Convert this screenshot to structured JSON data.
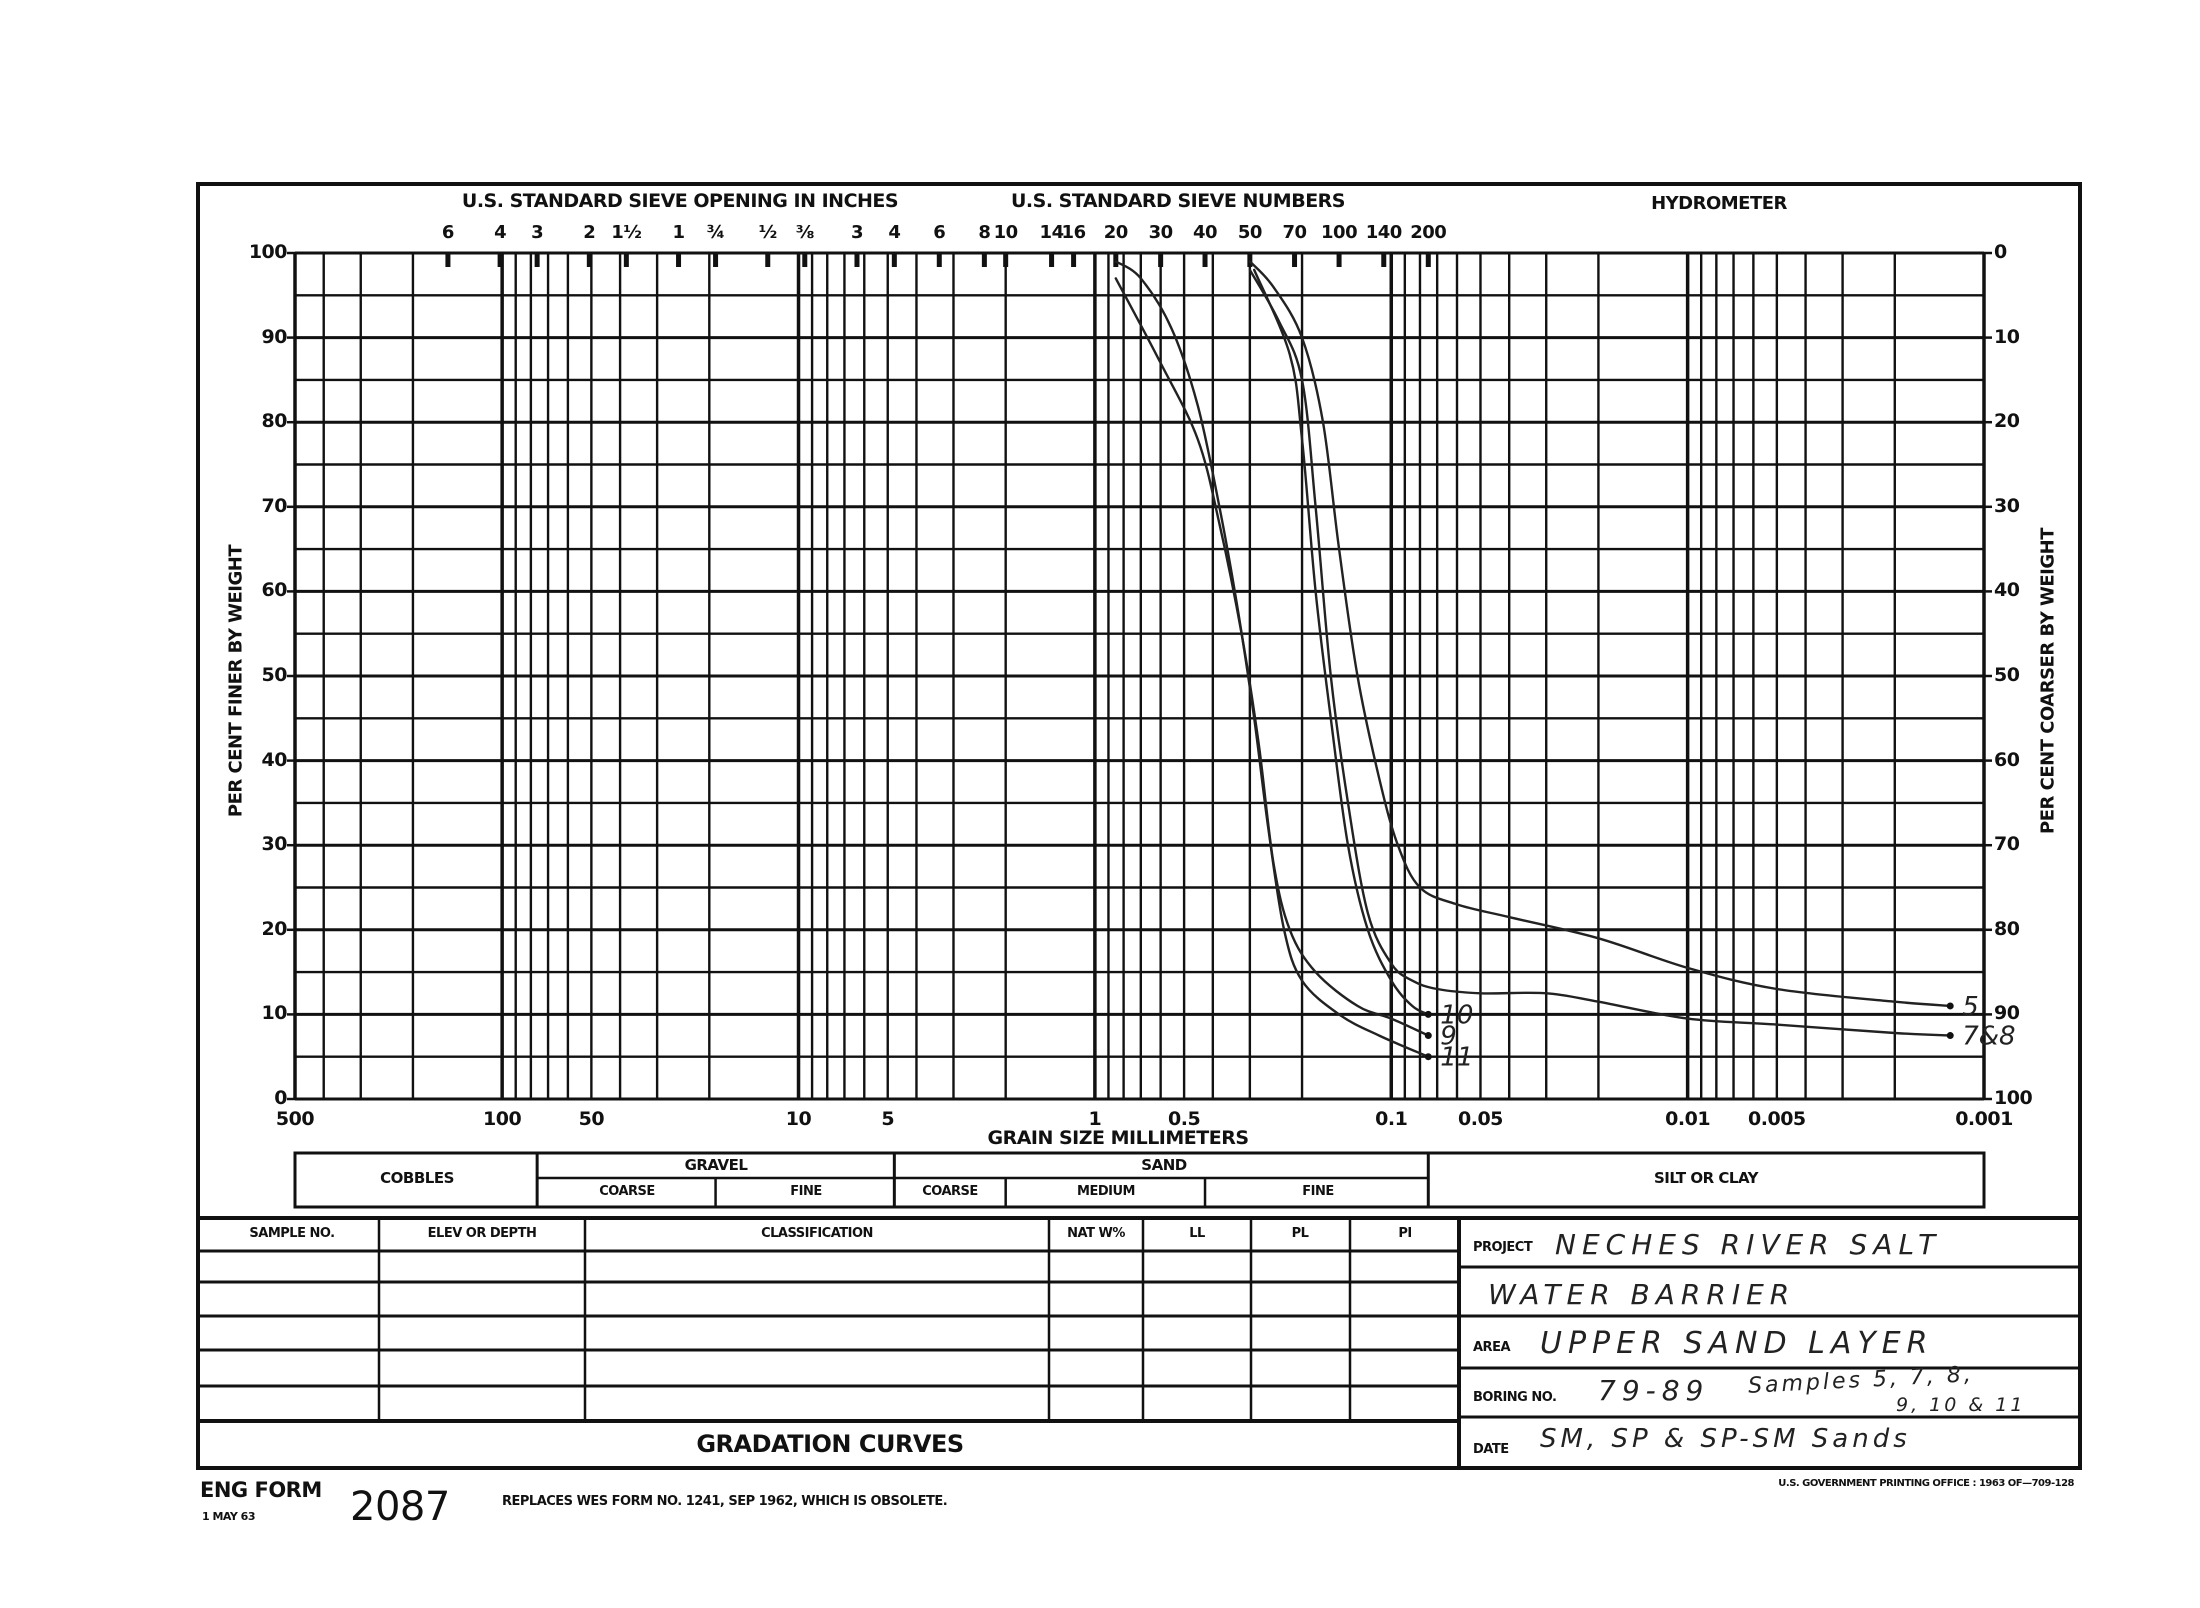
{
  "header": {
    "sieve_inches_title": "U.S. STANDARD SIEVE OPENING IN INCHES",
    "sieve_numbers_title": "U.S. STANDARD SIEVE NUMBERS",
    "hydrometer_title": "HYDROMETER",
    "sieve_inch_labels": [
      "6",
      "4",
      "3",
      "2",
      "1½",
      "1",
      "¾",
      "½",
      "⅜"
    ],
    "sieve_number_labels": [
      "3",
      "4",
      "6",
      "8",
      "10",
      "14",
      "16",
      "20",
      "30",
      "40",
      "50",
      "70",
      "100",
      "140",
      "200"
    ]
  },
  "chart_data": {
    "type": "line",
    "title": "GRADATION CURVES",
    "xlabel": "GRAIN SIZE MILLIMETERS",
    "ylabel": "PER CENT FINER BY WEIGHT",
    "y2label": "PER CENT COARSER BY WEIGHT",
    "x_scale": "log",
    "x_direction": "reversed",
    "xlim": [
      500,
      0.001
    ],
    "ylim": [
      0,
      100
    ],
    "grid": true,
    "x_ticks": [
      "500",
      "100",
      "50",
      "10",
      "5",
      "1",
      "0.5",
      "0.1",
      "0.05",
      "0.01",
      "0.005",
      "0.001"
    ],
    "y_ticks": [
      "100",
      "90",
      "80",
      "70",
      "60",
      "50",
      "40",
      "30",
      "20",
      "10",
      "0"
    ],
    "y2_ticks": [
      "0",
      "10",
      "20",
      "30",
      "40",
      "50",
      "60",
      "70",
      "80",
      "90",
      "100"
    ],
    "series": [
      {
        "name": "5",
        "points": [
          [
            0.3,
            99
          ],
          [
            0.25,
            96
          ],
          [
            0.2,
            90
          ],
          [
            0.17,
            80
          ],
          [
            0.15,
            65
          ],
          [
            0.13,
            50
          ],
          [
            0.11,
            38
          ],
          [
            0.095,
            30
          ],
          [
            0.08,
            25
          ],
          [
            0.06,
            23
          ],
          [
            0.04,
            21.5
          ],
          [
            0.02,
            19
          ],
          [
            0.01,
            15.5
          ],
          [
            0.005,
            13
          ],
          [
            0.002,
            11.5
          ],
          [
            0.0013,
            11
          ]
        ]
      },
      {
        "name": "7&8",
        "points": [
          [
            0.3,
            98
          ],
          [
            0.24,
            92
          ],
          [
            0.2,
            85
          ],
          [
            0.18,
            70
          ],
          [
            0.16,
            50
          ],
          [
            0.14,
            35
          ],
          [
            0.12,
            22
          ],
          [
            0.1,
            16
          ],
          [
            0.085,
            14
          ],
          [
            0.07,
            13
          ],
          [
            0.05,
            12.5
          ],
          [
            0.03,
            12.5
          ],
          [
            0.02,
            11.5
          ],
          [
            0.01,
            9.5
          ],
          [
            0.005,
            8.8
          ],
          [
            0.002,
            7.8
          ],
          [
            0.0013,
            7.5
          ]
        ]
      },
      {
        "name": "10",
        "points": [
          [
            0.29,
            98
          ],
          [
            0.22,
            88
          ],
          [
            0.2,
            78
          ],
          [
            0.18,
            60
          ],
          [
            0.16,
            45
          ],
          [
            0.14,
            30
          ],
          [
            0.12,
            20
          ],
          [
            0.1,
            14
          ],
          [
            0.085,
            11
          ],
          [
            0.075,
            10
          ]
        ]
      },
      {
        "name": "9",
        "points": [
          [
            0.85,
            97
          ],
          [
            0.6,
            87
          ],
          [
            0.45,
            78
          ],
          [
            0.38,
            68
          ],
          [
            0.32,
            55
          ],
          [
            0.28,
            42
          ],
          [
            0.25,
            28
          ],
          [
            0.22,
            20
          ],
          [
            0.18,
            15
          ],
          [
            0.13,
            11
          ],
          [
            0.1,
            9.5
          ],
          [
            0.075,
            7.5
          ]
        ]
      },
      {
        "name": "11",
        "points": [
          [
            0.85,
            99
          ],
          [
            0.7,
            97
          ],
          [
            0.55,
            91
          ],
          [
            0.45,
            82
          ],
          [
            0.38,
            70
          ],
          [
            0.33,
            58
          ],
          [
            0.29,
            45
          ],
          [
            0.26,
            32
          ],
          [
            0.23,
            20
          ],
          [
            0.2,
            14
          ],
          [
            0.15,
            10
          ],
          [
            0.11,
            7.5
          ],
          [
            0.075,
            5
          ]
        ]
      }
    ]
  },
  "classification_band": {
    "cobbles": "COBBLES",
    "gravel": "GRAVEL",
    "gravel_coarse": "COARSE",
    "gravel_fine": "FINE",
    "sand": "SAND",
    "sand_coarse": "COARSE",
    "sand_medium": "MEDIUM",
    "sand_fine": "FINE",
    "silt_clay": "SILT OR CLAY"
  },
  "table": {
    "headers": [
      "SAMPLE NO.",
      "ELEV OR DEPTH",
      "CLASSIFICATION",
      "NAT W%",
      "LL",
      "PL",
      "PI"
    ],
    "title": "GRADATION CURVES"
  },
  "info": {
    "project_label": "PROJECT",
    "project_line1": "NECHES RIVER SALT",
    "project_line2": "WATER BARRIER",
    "area_label": "AREA",
    "area_value": "UPPER SAND LAYER",
    "boring_label": "BORING NO.",
    "boring_value": "79-89",
    "boring_note_1": "Samples 5, 7, 8,",
    "boring_note_2": "9, 10 & 11",
    "date_label": "DATE",
    "date_value": "SM, SP & SP-SM Sands"
  },
  "footer": {
    "form_name": "ENG FORM",
    "form_date": "1 MAY 63",
    "form_number": "2087",
    "replaces": "REPLACES WES FORM NO. 1241, SEP 1962, WHICH IS OBSOLETE.",
    "printing_office": "U.S. GOVERNMENT PRINTING OFFICE : 1963 OF—709-128"
  }
}
